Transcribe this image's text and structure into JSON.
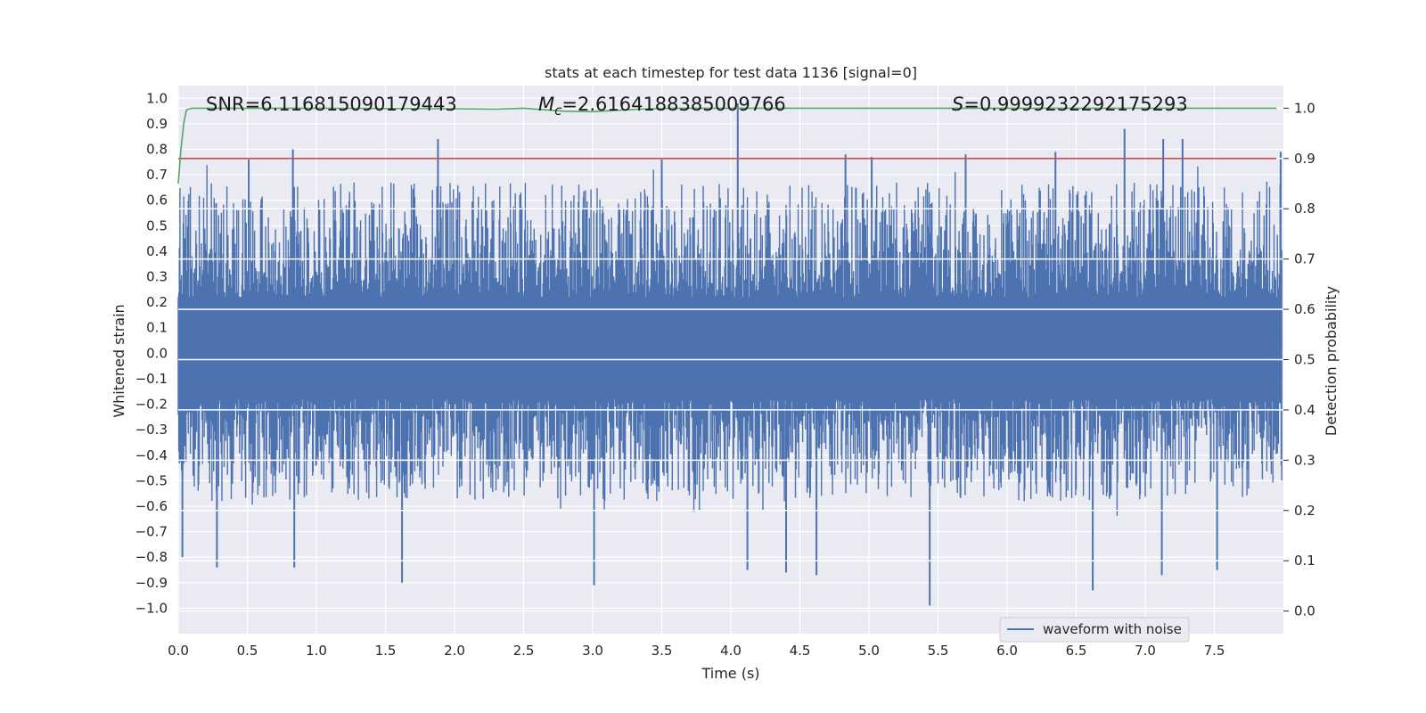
{
  "chart_data": {
    "type": "line",
    "title": "stats at each timestep for test data 1136 [signal=0]",
    "xlabel": "Time (s)",
    "ylabel": "Whitened strain",
    "ylabel_right": "Detection probability",
    "xlim": [
      0.0,
      8.0
    ],
    "ylim": [
      -1.1,
      1.05
    ],
    "ylim_right": [
      -0.045,
      1.045
    ],
    "x_ticks": [
      "0.0",
      "0.5",
      "1.0",
      "1.5",
      "2.0",
      "2.5",
      "3.0",
      "3.5",
      "4.0",
      "4.5",
      "5.0",
      "5.5",
      "6.0",
      "6.5",
      "7.0",
      "7.5"
    ],
    "y_ticks": [
      "1.0",
      "0.9",
      "0.8",
      "0.7",
      "0.6",
      "0.5",
      "0.4",
      "0.3",
      "0.2",
      "0.1",
      "0.0",
      "−0.1",
      "−0.2",
      "−0.3",
      "−0.4",
      "−0.5",
      "−0.6",
      "−0.7",
      "−0.8",
      "−0.9",
      "−1.0"
    ],
    "y_ticks_right": [
      "1.0",
      "0.9",
      "0.8",
      "0.7",
      "0.6",
      "0.5",
      "0.4",
      "0.3",
      "0.2",
      "0.1",
      "0.0"
    ],
    "grid": true,
    "legend": {
      "entries": [
        "waveform with noise"
      ],
      "placement": "lower-right"
    },
    "annotations": {
      "snr": "SNR=6.116815090179443",
      "mc_symbol": "M",
      "mc_sub": "c",
      "mc_value": "=2.6164188385009766",
      "s_symbol": "S",
      "s_value": "=0.9999232292175293"
    },
    "series": [
      {
        "name": "waveform with noise",
        "axis": "left",
        "color": "#4c72b0",
        "style": "dense noise band",
        "typical_max": 0.55,
        "typical_min": -0.45,
        "peaks_high": [
          {
            "x": 0.83,
            "y": 0.8
          },
          {
            "x": 1.88,
            "y": 0.84
          },
          {
            "x": 4.05,
            "y": 0.98
          },
          {
            "x": 6.85,
            "y": 0.88
          },
          {
            "x": 7.13,
            "y": 0.84
          },
          {
            "x": 7.27,
            "y": 0.84
          },
          {
            "x": 7.98,
            "y": 0.79
          },
          {
            "x": 0.51,
            "y": 0.76
          },
          {
            "x": 3.5,
            "y": 0.76
          },
          {
            "x": 4.83,
            "y": 0.78
          },
          {
            "x": 5.02,
            "y": 0.77
          },
          {
            "x": 5.7,
            "y": 0.78
          },
          {
            "x": 6.35,
            "y": 0.79
          }
        ],
        "peaks_low": [
          {
            "x": 0.03,
            "y": -0.8
          },
          {
            "x": 0.28,
            "y": -0.84
          },
          {
            "x": 0.84,
            "y": -0.84
          },
          {
            "x": 1.62,
            "y": -0.9
          },
          {
            "x": 3.01,
            "y": -0.91
          },
          {
            "x": 4.62,
            "y": -0.87
          },
          {
            "x": 5.44,
            "y": -0.99
          },
          {
            "x": 6.62,
            "y": -0.93
          },
          {
            "x": 7.12,
            "y": -0.87
          },
          {
            "x": 7.52,
            "y": -0.85
          },
          {
            "x": 4.12,
            "y": -0.85
          },
          {
            "x": 4.4,
            "y": -0.86
          }
        ]
      },
      {
        "name": "detection probability",
        "axis": "right",
        "color": "#55a868",
        "x": [
          0.0,
          0.02,
          0.04,
          0.06,
          0.1,
          0.3,
          1.0,
          2.0,
          2.3,
          2.5,
          2.8,
          3.0,
          3.2,
          3.4,
          3.6,
          5.0,
          6.0,
          7.0,
          7.95
        ],
        "y": [
          0.85,
          0.92,
          0.97,
          0.997,
          1.0,
          1.0,
          1.0,
          0.999,
          0.998,
          1.0,
          0.994,
          0.993,
          0.996,
          0.999,
          1.0,
          1.0,
          1.0,
          1.0,
          1.0
        ]
      },
      {
        "name": "threshold",
        "axis": "right",
        "color": "#c44e52",
        "x": [
          0.0,
          7.95
        ],
        "y": [
          0.9,
          0.9
        ]
      }
    ]
  }
}
